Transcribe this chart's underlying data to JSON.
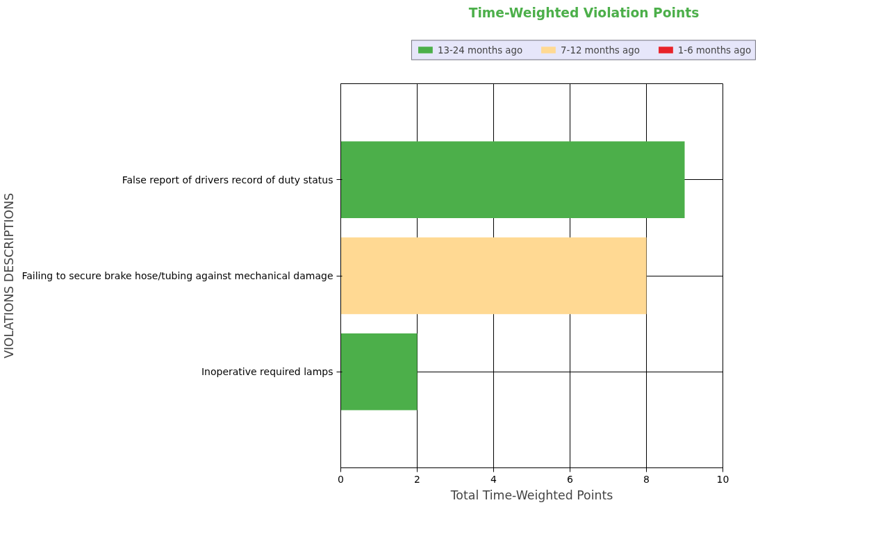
{
  "chart_data": {
    "type": "bar",
    "orientation": "horizontal",
    "title": "Time-Weighted Violation Points",
    "xlabel": "Total Time-Weighted Points",
    "ylabel": "VIOLATIONS DESCRIPTIONS",
    "categories": [
      "False report of drivers record of duty status",
      "Failing to secure brake hose/tubing against mechanical damage",
      "Inoperative required lamps"
    ],
    "series": [
      {
        "name": "13-24 months ago",
        "color": "#4caf4a",
        "values": [
          9,
          null,
          2
        ]
      },
      {
        "name": "7-12 months ago",
        "color": "#ffd993",
        "values": [
          null,
          8,
          null
        ]
      },
      {
        "name": "1-6 months ago",
        "color": "#e8232a",
        "values": [
          null,
          null,
          null
        ]
      }
    ],
    "xlim": [
      0,
      10
    ],
    "xticks": [
      0,
      2,
      4,
      6,
      8,
      10
    ],
    "grid": true,
    "legend": "top"
  }
}
